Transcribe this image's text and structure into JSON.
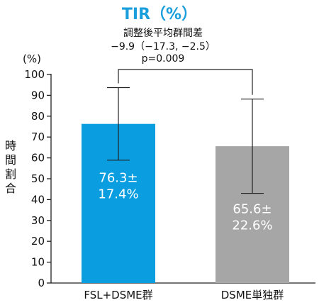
{
  "chart_data": {
    "type": "bar",
    "title": "TIR（%）",
    "annotation": {
      "label": "調整後平均群間差",
      "value": "−9.9（−17.3, −2.5）",
      "p_value": "p=0.009"
    },
    "ylabel": "時間割合",
    "yunit": "(%)",
    "ylim": [
      0,
      100
    ],
    "yticks": [
      0,
      10,
      20,
      30,
      40,
      50,
      60,
      70,
      80,
      90,
      100
    ],
    "categories": [
      "FSL+DSME群",
      "DSME単独群"
    ],
    "values": [
      76.3,
      65.6
    ],
    "errors": [
      17.4,
      22.6
    ],
    "bar_labels": [
      [
        "76.3±",
        "17.4%"
      ],
      [
        "65.6±",
        "22.6%"
      ]
    ],
    "colors": [
      "#0a9ee0",
      "#a6a6a6"
    ],
    "grid": false
  }
}
